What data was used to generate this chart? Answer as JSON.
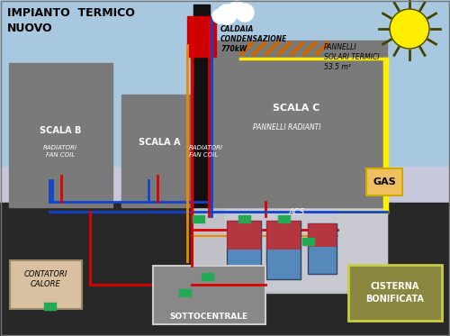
{
  "bg_sky": "#a8c8e0",
  "bg_ground": "#282828",
  "building_color": "#7a7a7a",
  "title": "IMPIANTO  TERMICO\nNUOVO",
  "title_color": "#000000",
  "labels": {
    "scala_b": "SCALA B",
    "scala_a": "SCALA A",
    "scala_c": "SCALA C",
    "rad_fancoil_b": "RADIATORI\nFAN COIL",
    "rad_fancoil_a": "RADIATORI\nFAN COIL",
    "pannelli_radianti": "PANNELLI RADIANTI",
    "caldaia": "CALDAIA\nCONDENSAZIONE\n770kW",
    "pannelli_solari": "PANNELLI\nSOLARI TERMICI\n53.5 m²",
    "gas": "GAS",
    "acs": "ACS",
    "contatori": "CONTATORI\nCALORE",
    "sottocentrale": "SOTTOCENTRALE",
    "cisterna": "CISTERNA\nBONIFICATA"
  },
  "pipe_red": "#dd0000",
  "pipe_blue": "#1144cc",
  "pipe_orange": "#ee8800",
  "pipe_yellow": "#ffee00",
  "green_component": "#22aa55",
  "sun_color": "#ffee00",
  "boiler_red": "#cc0000",
  "solar_panel_color": "#cc6600",
  "chimney_color": "#111111",
  "cellar_bg": "#c0c0c8",
  "cellar_bg2": "#d0d0d8"
}
